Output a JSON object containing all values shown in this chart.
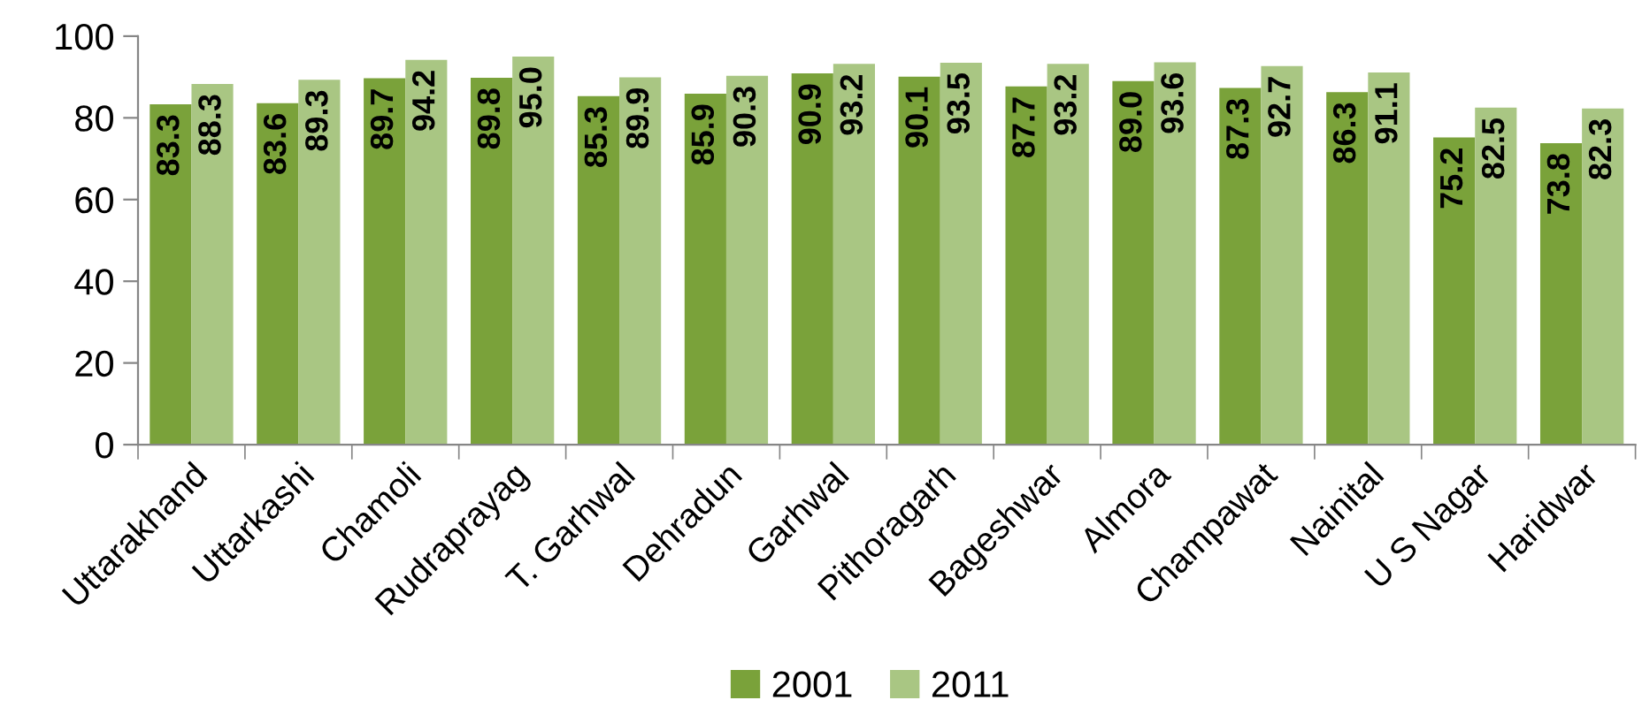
{
  "chart_data": {
    "type": "bar",
    "categories": [
      "Uttarakhand",
      "Uttarkashi",
      "Chamoli",
      "Rudraprayag",
      "T. Garhwal",
      "Dehradun",
      "Garhwal",
      "Pithoragarh",
      "Bageshwar",
      "Almora",
      "Champawat",
      "Nainital",
      "U S Nagar",
      "Haridwar"
    ],
    "series": [
      {
        "name": "2001",
        "color": "#7aa23a",
        "values": [
          83.3,
          83.6,
          89.7,
          89.8,
          85.3,
          85.9,
          90.9,
          90.1,
          87.7,
          89.0,
          87.3,
          86.3,
          75.2,
          73.8
        ],
        "value_labels": [
          "83.3",
          "83.6",
          "89.7",
          "89.8",
          "85.3",
          "85.9",
          "90.9",
          "90.1",
          "87.7",
          "89.0",
          "87.3",
          "86.3",
          "75.2",
          "73.8"
        ]
      },
      {
        "name": "2011",
        "color": "#a9c683",
        "values": [
          88.3,
          89.3,
          94.2,
          95.0,
          89.9,
          90.3,
          93.2,
          93.5,
          93.2,
          93.6,
          92.7,
          91.1,
          82.5,
          82.3
        ],
        "value_labels": [
          "88.3",
          "89.3",
          "94.2",
          "95.0",
          "89.9",
          "90.3",
          "93.2",
          "93.5",
          "93.2",
          "93.6",
          "92.7",
          "91.1",
          "82.5",
          "82.3"
        ]
      }
    ],
    "ylim": [
      0,
      100
    ],
    "yticks": [
      0,
      20,
      40,
      60,
      80,
      100
    ],
    "legend": "bottom"
  }
}
